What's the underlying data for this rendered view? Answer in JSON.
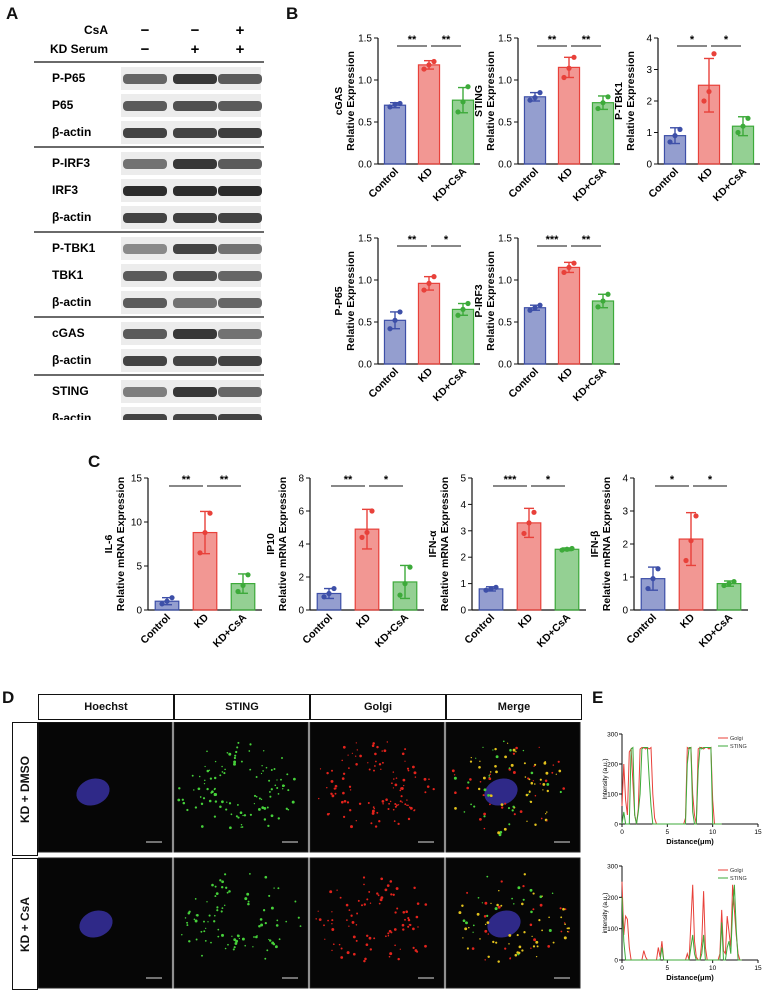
{
  "panels": {
    "A": "A",
    "B": "B",
    "C": "C",
    "D": "D",
    "E": "E"
  },
  "blot": {
    "conditions": [
      {
        "label": "CsA",
        "signs": [
          "−",
          "−",
          "+"
        ]
      },
      {
        "label": "KD Serum",
        "signs": [
          "−",
          "+",
          "+"
        ]
      }
    ],
    "groups": [
      {
        "rows": [
          {
            "label": "P-P65",
            "intensity": [
              0.65,
              0.85,
              0.7
            ]
          },
          {
            "label": "P65",
            "intensity": [
              0.7,
              0.75,
              0.7
            ]
          },
          {
            "label": "β-actin",
            "intensity": [
              0.8,
              0.8,
              0.82
            ]
          }
        ]
      },
      {
        "rows": [
          {
            "label": "P-IRF3",
            "intensity": [
              0.6,
              0.85,
              0.7
            ]
          },
          {
            "label": "IRF3",
            "intensity": [
              0.9,
              0.9,
              0.9
            ]
          },
          {
            "label": "β-actin",
            "intensity": [
              0.8,
              0.82,
              0.8
            ]
          }
        ]
      },
      {
        "rows": [
          {
            "label": "P-TBK1",
            "intensity": [
              0.5,
              0.8,
              0.6
            ]
          },
          {
            "label": "TBK1",
            "intensity": [
              0.7,
              0.75,
              0.65
            ]
          },
          {
            "label": "β-actin",
            "intensity": [
              0.7,
              0.6,
              0.65
            ]
          }
        ]
      },
      {
        "rows": [
          {
            "label": "cGAS",
            "intensity": [
              0.7,
              0.85,
              0.6
            ]
          },
          {
            "label": "β-actin",
            "intensity": [
              0.8,
              0.8,
              0.8
            ]
          }
        ]
      },
      {
        "rows": [
          {
            "label": "STING",
            "intensity": [
              0.55,
              0.85,
              0.65
            ]
          },
          {
            "label": "β-actin",
            "intensity": [
              0.8,
              0.8,
              0.8
            ]
          }
        ]
      }
    ]
  },
  "colors": {
    "control": "#3d4fa8",
    "kd": "#e8413a",
    "kdcsa": "#3daa3a",
    "golgi_line": "#e8413a",
    "sting_line": "#3daa3a"
  },
  "chart_data": [
    {
      "type": "bar",
      "panel": "B",
      "ylabel": "cGAS\nRelative Expression",
      "categories": [
        "Control",
        "KD",
        "KD+CsA"
      ],
      "values": [
        0.7,
        1.18,
        0.76
      ],
      "errors": [
        0.03,
        0.05,
        0.15
      ],
      "ylim": [
        0,
        1.5
      ],
      "yticks": [
        0.0,
        0.5,
        1.0,
        1.5
      ],
      "points": [
        [
          0.68,
          0.71,
          0.72
        ],
        [
          1.13,
          1.18,
          1.22
        ],
        [
          0.62,
          0.74,
          0.92
        ]
      ],
      "sig": [
        {
          "from": 0,
          "to": 1,
          "label": "**"
        },
        {
          "from": 1,
          "to": 2,
          "label": "**"
        }
      ]
    },
    {
      "type": "bar",
      "panel": "B",
      "ylabel": "STING\nRelative Expression",
      "categories": [
        "Control",
        "KD",
        "KD+CsA"
      ],
      "values": [
        0.8,
        1.15,
        0.73
      ],
      "errors": [
        0.05,
        0.12,
        0.08
      ],
      "ylim": [
        0,
        1.5
      ],
      "yticks": [
        0.0,
        0.5,
        1.0,
        1.5
      ],
      "points": [
        [
          0.76,
          0.79,
          0.85
        ],
        [
          1.03,
          1.14,
          1.27
        ],
        [
          0.66,
          0.73,
          0.8
        ]
      ],
      "sig": [
        {
          "from": 0,
          "to": 1,
          "label": "**"
        },
        {
          "from": 1,
          "to": 2,
          "label": "**"
        }
      ]
    },
    {
      "type": "bar",
      "panel": "B",
      "ylabel": "P-TBK1\nRelative Expression",
      "categories": [
        "Control",
        "KD",
        "KD+CsA"
      ],
      "values": [
        0.9,
        2.5,
        1.2
      ],
      "errors": [
        0.25,
        0.85,
        0.3
      ],
      "ylim": [
        0,
        4
      ],
      "yticks": [
        0,
        1,
        2,
        3,
        4
      ],
      "points": [
        [
          0.7,
          0.9,
          1.1
        ],
        [
          2.0,
          2.3,
          3.5
        ],
        [
          1.0,
          1.2,
          1.45
        ]
      ],
      "sig": [
        {
          "from": 0,
          "to": 1,
          "label": "*"
        },
        {
          "from": 1,
          "to": 2,
          "label": "*"
        }
      ]
    },
    {
      "type": "bar",
      "panel": "B",
      "ylabel": "P-P65\nRelative Expression",
      "categories": [
        "Control",
        "KD",
        "KD+CsA"
      ],
      "values": [
        0.52,
        0.96,
        0.65
      ],
      "errors": [
        0.1,
        0.08,
        0.07
      ],
      "ylim": [
        0,
        1.5
      ],
      "yticks": [
        0.0,
        0.5,
        1.0,
        1.5
      ],
      "points": [
        [
          0.42,
          0.52,
          0.62
        ],
        [
          0.88,
          0.96,
          1.04
        ],
        [
          0.58,
          0.65,
          0.72
        ]
      ],
      "sig": [
        {
          "from": 0,
          "to": 1,
          "label": "**"
        },
        {
          "from": 1,
          "to": 2,
          "label": "*"
        }
      ]
    },
    {
      "type": "bar",
      "panel": "B",
      "ylabel": "P-IRF3\nRelative Expression",
      "categories": [
        "Control",
        "KD",
        "KD+CsA"
      ],
      "values": [
        0.67,
        1.15,
        0.75
      ],
      "errors": [
        0.03,
        0.06,
        0.08
      ],
      "ylim": [
        0,
        1.5
      ],
      "yticks": [
        0.0,
        0.5,
        1.0,
        1.5
      ],
      "points": [
        [
          0.64,
          0.67,
          0.7
        ],
        [
          1.09,
          1.15,
          1.2
        ],
        [
          0.68,
          0.75,
          0.83
        ]
      ],
      "sig": [
        {
          "from": 0,
          "to": 1,
          "label": "***"
        },
        {
          "from": 1,
          "to": 2,
          "label": "**"
        }
      ]
    },
    {
      "type": "bar",
      "panel": "C",
      "ylabel": "IL-6\nRelative mRNA Expression",
      "categories": [
        "Control",
        "KD",
        "KD+CsA"
      ],
      "values": [
        1.0,
        8.8,
        3.0
      ],
      "errors": [
        0.4,
        2.4,
        1.1
      ],
      "ylim": [
        0,
        15
      ],
      "yticks": [
        0,
        5,
        10,
        15
      ],
      "points": [
        [
          0.7,
          1.0,
          1.4
        ],
        [
          6.5,
          8.8,
          11.0
        ],
        [
          2.1,
          2.8,
          4.0
        ]
      ],
      "sig": [
        {
          "from": 0,
          "to": 1,
          "label": "**"
        },
        {
          "from": 1,
          "to": 2,
          "label": "**"
        }
      ]
    },
    {
      "type": "bar",
      "panel": "C",
      "ylabel": "IP10\nRelative mRNA Expression",
      "categories": [
        "Control",
        "KD",
        "KD+CsA"
      ],
      "values": [
        1.0,
        4.9,
        1.7
      ],
      "errors": [
        0.3,
        1.2,
        1.0
      ],
      "ylim": [
        0,
        8
      ],
      "yticks": [
        0,
        2,
        4,
        6,
        8
      ],
      "points": [
        [
          0.8,
          1.0,
          1.3
        ],
        [
          4.4,
          4.7,
          6.0
        ],
        [
          0.9,
          1.6,
          2.6
        ]
      ],
      "sig": [
        {
          "from": 0,
          "to": 1,
          "label": "**"
        },
        {
          "from": 1,
          "to": 2,
          "label": "*"
        }
      ]
    },
    {
      "type": "bar",
      "panel": "C",
      "ylabel": "IFN-α\nRelative mRNA Expression",
      "categories": [
        "Control",
        "KD",
        "KD+CsA"
      ],
      "values": [
        0.8,
        3.3,
        2.3
      ],
      "errors": [
        0.08,
        0.55,
        0.05
      ],
      "ylim": [
        0,
        5
      ],
      "yticks": [
        0,
        1,
        2,
        3,
        4,
        5
      ],
      "points": [
        [
          0.75,
          0.8,
          0.86
        ],
        [
          2.9,
          3.3,
          3.7
        ],
        [
          2.27,
          2.3,
          2.33
        ]
      ],
      "sig": [
        {
          "from": 0,
          "to": 1,
          "label": "***"
        },
        {
          "from": 1,
          "to": 2,
          "label": "*"
        }
      ]
    },
    {
      "type": "bar",
      "panel": "C",
      "ylabel": "IFN-β\nRelative mRNA Expression",
      "categories": [
        "Control",
        "KD",
        "KD+CsA"
      ],
      "values": [
        0.95,
        2.15,
        0.8
      ],
      "errors": [
        0.35,
        0.8,
        0.08
      ],
      "ylim": [
        0,
        4
      ],
      "yticks": [
        0,
        1,
        2,
        3,
        4
      ],
      "points": [
        [
          0.65,
          0.95,
          1.25
        ],
        [
          1.5,
          2.1,
          2.85
        ],
        [
          0.74,
          0.8,
          0.86
        ]
      ],
      "sig": [
        {
          "from": 0,
          "to": 1,
          "label": "*"
        },
        {
          "from": 1,
          "to": 2,
          "label": "*"
        }
      ]
    },
    {
      "type": "line",
      "panel": "E",
      "xlabel": "Distance(μm)",
      "ylabel": "Intensity (a.u.)",
      "xlim": [
        0,
        15
      ],
      "ylim": [
        0,
        300
      ],
      "xticks": [
        0,
        5,
        10,
        15
      ],
      "yticks": [
        0,
        100,
        200,
        300
      ],
      "series": [
        {
          "name": "Golgi",
          "x": [
            0,
            0.2,
            0.4,
            0.6,
            0.8,
            1.0,
            1.2,
            1.4,
            1.6,
            1.8,
            2.0,
            2.2,
            2.4,
            2.6,
            2.8,
            3.0,
            3.2,
            3.4,
            3.6,
            3.8,
            4.0,
            4.2,
            4.4,
            4.6,
            4.8,
            5.0,
            5.2,
            5.4,
            5.6,
            5.8,
            6.0,
            6.2,
            6.4,
            6.6,
            6.8,
            7.0,
            7.2,
            7.4,
            7.6,
            7.8,
            8.0,
            8.2,
            8.4,
            8.6,
            8.8,
            9.0,
            9.2,
            9.4,
            9.6,
            9.8,
            10.0,
            10.2,
            10.4,
            10.6,
            10.8,
            11.0
          ],
          "y": [
            60,
            200,
            80,
            30,
            240,
            250,
            140,
            30,
            0,
            50,
            250,
            255,
            255,
            250,
            255,
            250,
            255,
            100,
            20,
            0,
            0,
            0,
            0,
            0,
            0,
            0,
            0,
            0,
            0,
            0,
            0,
            0,
            0,
            0,
            0,
            20,
            255,
            250,
            255,
            100,
            30,
            0,
            250,
            255,
            255,
            250,
            255,
            255,
            250,
            255,
            80,
            0,
            0,
            0,
            0,
            0
          ]
        },
        {
          "name": "STING",
          "x": [
            0,
            0.2,
            0.4,
            0.6,
            0.8,
            1.0,
            1.2,
            1.4,
            1.6,
            1.8,
            2.0,
            2.2,
            2.4,
            2.6,
            2.8,
            3.0,
            3.2,
            3.4,
            3.6,
            3.8,
            4.0,
            4.2,
            4.4,
            4.6,
            4.8,
            5.0,
            5.2,
            5.4,
            5.6,
            5.8,
            6.0,
            6.2,
            6.4,
            6.6,
            6.8,
            7.0,
            7.2,
            7.4,
            7.6,
            7.8,
            8.0,
            8.2,
            8.4,
            8.6,
            8.8,
            9.0,
            9.2,
            9.4,
            9.6,
            9.8,
            10.0,
            10.2,
            10.4,
            10.6,
            10.8,
            11.0
          ],
          "y": [
            0,
            40,
            0,
            0,
            0,
            250,
            255,
            30,
            0,
            40,
            100,
            250,
            255,
            255,
            255,
            150,
            60,
            0,
            0,
            0,
            0,
            0,
            0,
            0,
            0,
            0,
            0,
            0,
            0,
            0,
            0,
            0,
            0,
            0,
            0,
            0,
            200,
            255,
            255,
            40,
            0,
            0,
            180,
            255,
            250,
            255,
            255,
            255,
            255,
            255,
            0,
            0,
            0,
            0,
            0,
            0
          ]
        }
      ]
    },
    {
      "type": "line",
      "panel": "E",
      "xlabel": "Distance(μm)",
      "ylabel": "intensity (a.u.)",
      "xlim": [
        0,
        15
      ],
      "ylim": [
        0,
        300
      ],
      "xticks": [
        0,
        5,
        10,
        15
      ],
      "yticks": [
        0,
        100,
        200,
        300
      ],
      "series": [
        {
          "name": "Golgi",
          "x": [
            0,
            0.2,
            0.4,
            0.6,
            0.8,
            1.0,
            1.2,
            1.4,
            1.6,
            1.8,
            2.0,
            2.2,
            2.4,
            2.6,
            2.8,
            3.0,
            3.2,
            3.4,
            3.6,
            3.8,
            4.0,
            4.2,
            4.4,
            4.6,
            4.8,
            5.0,
            5.2,
            5.4,
            5.6,
            5.8,
            6.0,
            6.2,
            6.4,
            6.6,
            6.8,
            7.0,
            7.2,
            7.4,
            7.6,
            7.8,
            8.0,
            8.2,
            8.4,
            8.6,
            8.8,
            9.0,
            9.2,
            9.4,
            9.6,
            9.8,
            10.0,
            10.2,
            10.4,
            10.6,
            10.8,
            11.0,
            11.2,
            11.4,
            11.6,
            11.8,
            12.0,
            12.2,
            12.4,
            12.6,
            12.8,
            13.0,
            13.2
          ],
          "y": [
            250,
            80,
            140,
            130,
            40,
            0,
            0,
            0,
            0,
            0,
            0,
            0,
            30,
            10,
            0,
            0,
            0,
            0,
            0,
            0,
            40,
            10,
            60,
            0,
            0,
            0,
            0,
            0,
            0,
            0,
            0,
            0,
            0,
            0,
            0,
            0,
            20,
            0,
            120,
            240,
            60,
            10,
            0,
            0,
            60,
            220,
            40,
            0,
            0,
            0,
            0,
            0,
            0,
            0,
            20,
            160,
            30,
            20,
            140,
            90,
            40,
            240,
            160,
            80,
            20,
            0,
            0
          ]
        },
        {
          "name": "STING",
          "x": [
            0,
            0.2,
            0.4,
            0.6,
            0.8,
            1.0,
            1.2,
            1.4,
            1.6,
            1.8,
            2.0,
            2.2,
            2.4,
            2.6,
            2.8,
            3.0,
            3.2,
            3.4,
            3.6,
            3.8,
            4.0,
            4.2,
            4.4,
            4.6,
            4.8,
            5.0,
            5.2,
            5.4,
            5.6,
            5.8,
            6.0,
            6.2,
            6.4,
            6.6,
            6.8,
            7.0,
            7.2,
            7.4,
            7.6,
            7.8,
            8.0,
            8.2,
            8.4,
            8.6,
            8.8,
            9.0,
            9.2,
            9.4,
            9.6,
            9.8,
            10.0,
            10.2,
            10.4,
            10.6,
            10.8,
            11.0,
            11.2,
            11.4,
            11.6,
            11.8,
            12.0,
            12.2,
            12.4,
            12.6,
            12.8,
            13.0,
            13.2
          ],
          "y": [
            200,
            60,
            0,
            0,
            0,
            0,
            0,
            0,
            0,
            0,
            0,
            0,
            0,
            0,
            0,
            0,
            0,
            0,
            0,
            0,
            0,
            0,
            40,
            0,
            0,
            0,
            0,
            0,
            0,
            0,
            0,
            0,
            0,
            0,
            0,
            0,
            0,
            0,
            40,
            80,
            20,
            0,
            0,
            0,
            20,
            80,
            0,
            0,
            0,
            0,
            0,
            0,
            0,
            0,
            0,
            120,
            0,
            0,
            40,
            60,
            20,
            160,
            240,
            100,
            0,
            0,
            0
          ]
        }
      ]
    }
  ],
  "micro": {
    "columns": [
      "Hoechst",
      "STING",
      "Golgi",
      "Merge"
    ],
    "rows": [
      "KD + DMSO",
      "KD + CsA"
    ]
  }
}
